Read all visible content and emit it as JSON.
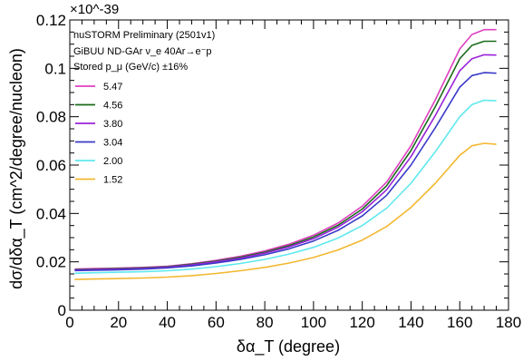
{
  "chart_data": {
    "type": "line",
    "xlabel": "δα_T (degree)",
    "ylabel": "dσ/dδα_T (cm^2/degree/nucleon)",
    "y_multiplier": "×10^-39",
    "xlim": [
      0,
      180
    ],
    "ylim": [
      0,
      0.12
    ],
    "x_ticks": [
      "0",
      "20",
      "40",
      "60",
      "80",
      "100",
      "120",
      "140",
      "160",
      "180"
    ],
    "y_ticks": [
      "0",
      "0.02",
      "0.04",
      "0.06",
      "0.08",
      "0.1",
      "0.12"
    ],
    "annotations": [
      "nuSTORM Preliminary (2501v1)",
      "GiBUU ND-GAr ν_e 40Ar→e⁻p",
      "Stored p_μ (GeV/c) ±16%"
    ],
    "legend_position": "top-left",
    "x": [
      2,
      10,
      20,
      30,
      40,
      50,
      60,
      70,
      80,
      90,
      100,
      110,
      120,
      130,
      140,
      150,
      160,
      165,
      170,
      175
    ],
    "series": [
      {
        "name": "5.47",
        "color": "#e040c0",
        "values": [
          0.017,
          0.0172,
          0.0174,
          0.0177,
          0.0182,
          0.0192,
          0.0206,
          0.0223,
          0.0245,
          0.0273,
          0.031,
          0.036,
          0.043,
          0.053,
          0.068,
          0.087,
          0.108,
          0.114,
          0.116,
          0.116
        ]
      },
      {
        "name": "4.56",
        "color": "#1a6b1a",
        "values": [
          0.0168,
          0.017,
          0.0172,
          0.0175,
          0.018,
          0.019,
          0.0203,
          0.0219,
          0.024,
          0.0267,
          0.0303,
          0.0351,
          0.0418,
          0.0515,
          0.066,
          0.0842,
          0.104,
          0.1095,
          0.1112,
          0.1112
        ]
      },
      {
        "name": "3.80",
        "color": "#9a22d8",
        "values": [
          0.0166,
          0.0168,
          0.017,
          0.0173,
          0.0178,
          0.0187,
          0.02,
          0.0215,
          0.0236,
          0.0262,
          0.0296,
          0.0343,
          0.0407,
          0.0498,
          0.0635,
          0.0805,
          0.099,
          0.104,
          0.1056,
          0.1055
        ]
      },
      {
        "name": "3.04",
        "color": "#3a3ac8",
        "values": [
          0.0164,
          0.0165,
          0.0167,
          0.017,
          0.0175,
          0.0183,
          0.0195,
          0.021,
          0.0229,
          0.0254,
          0.0286,
          0.033,
          0.039,
          0.0475,
          0.06,
          0.0755,
          0.0922,
          0.097,
          0.0982,
          0.098
        ]
      },
      {
        "name": "2.00",
        "color": "#5ee8ee",
        "values": [
          0.0153,
          0.0155,
          0.0157,
          0.0159,
          0.0163,
          0.017,
          0.018,
          0.0193,
          0.021,
          0.0232,
          0.026,
          0.0298,
          0.035,
          0.0422,
          0.0525,
          0.0655,
          0.08,
          0.085,
          0.0868,
          0.0866
        ]
      },
      {
        "name": "1.52",
        "color": "#f2b830",
        "values": [
          0.0127,
          0.0129,
          0.0131,
          0.0133,
          0.0137,
          0.0143,
          0.0152,
          0.0163,
          0.0177,
          0.0195,
          0.0218,
          0.0249,
          0.029,
          0.0346,
          0.0425,
          0.0525,
          0.064,
          0.068,
          0.069,
          0.0686
        ]
      }
    ]
  }
}
